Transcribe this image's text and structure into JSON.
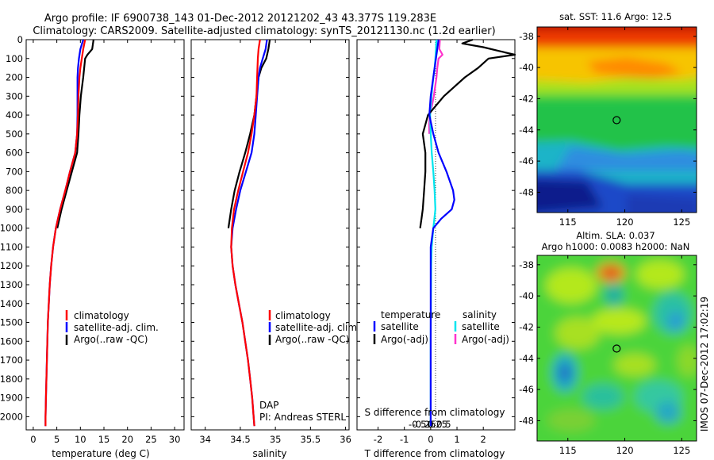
{
  "header": {
    "line1": "Argo profile: IF 6900738_143 01-Dec-2012 20121202_43 43.377S 119.283E",
    "line2": "Climatology: CARS2009. Satellite-adjusted climatology: synTS_20121130.nc (1.2d earlier)"
  },
  "credit": {
    "dap": "DAP",
    "pi": "PI: Andreas STERL"
  },
  "footer": {
    "stamp": "IMOS 07-Dec-2012 17:02:19"
  },
  "colors": {
    "climatology": "#ff0000",
    "satellite": "#0000ff",
    "argo": "#000000",
    "sal_satellite": "#00e5ee",
    "sal_argo": "#ff33cc"
  },
  "chart_data": [
    {
      "type": "line",
      "xlabel": "temperature (deg C)",
      "xticks": [
        0,
        5,
        10,
        15,
        20,
        25,
        30
      ],
      "xlim": [
        -1.5,
        32
      ],
      "ylim": [
        2070,
        0
      ],
      "yticks": [
        0,
        100,
        200,
        300,
        400,
        500,
        600,
        700,
        800,
        900,
        1000,
        1100,
        1200,
        1300,
        1400,
        1500,
        1600,
        1700,
        1800,
        1900,
        2000
      ],
      "legend": [
        "climatology",
        "satellite-adj. clim.",
        "Argo(..raw -QC)"
      ],
      "series": [
        {
          "name": "climatology",
          "color": "#ff0000",
          "depth": [
            0,
            50,
            100,
            150,
            200,
            300,
            400,
            500,
            600,
            700,
            800,
            900,
            1000,
            1100,
            1200,
            1300,
            1400,
            1500,
            1600,
            1700,
            1800,
            1900,
            2000,
            2050
          ],
          "values": [
            11.0,
            10.6,
            10.3,
            10.0,
            9.8,
            9.6,
            9.5,
            9.3,
            8.9,
            7.8,
            6.8,
            5.7,
            4.8,
            4.2,
            3.8,
            3.5,
            3.3,
            3.1,
            3.0,
            2.9,
            2.8,
            2.7,
            2.6,
            2.6
          ]
        },
        {
          "name": "satellite-adj. clim.",
          "color": "#0000ff",
          "depth": [
            0,
            50,
            100,
            150,
            200,
            300,
            400,
            500,
            600,
            700,
            800,
            900,
            1000,
            1100,
            1200,
            1300,
            1400,
            1500,
            1600,
            1700,
            1800,
            1900,
            2000,
            2050
          ],
          "values": [
            10.6,
            10.0,
            9.7,
            9.5,
            9.4,
            9.4,
            9.4,
            9.3,
            8.9,
            7.8,
            6.8,
            5.7,
            4.8,
            4.2,
            3.8,
            3.5,
            3.3,
            3.1,
            3.0,
            2.9,
            2.8,
            2.7,
            2.6,
            2.6
          ]
        },
        {
          "name": "Argo(..raw -QC)",
          "color": "#000000",
          "depth": [
            0,
            50,
            80,
            100,
            150,
            200,
            300,
            400,
            500,
            600,
            700,
            800,
            900,
            1000
          ],
          "values": [
            12.8,
            12.5,
            11.5,
            11.0,
            10.8,
            10.6,
            10.1,
            9.8,
            9.6,
            9.3,
            8.2,
            7.1,
            6.0,
            5.1
          ]
        }
      ]
    },
    {
      "type": "line",
      "xlabel": "salinity",
      "xticks": [
        34,
        34.5,
        35,
        35.5,
        36
      ],
      "xlim": [
        33.8,
        36.05
      ],
      "ylim": [
        2070,
        0
      ],
      "legend": [
        "climatology",
        "satellite-adj. clim.",
        "Argo(..raw -QC)"
      ],
      "series": [
        {
          "name": "climatology",
          "color": "#ff0000",
          "depth": [
            0,
            50,
            100,
            200,
            300,
            400,
            500,
            600,
            700,
            800,
            900,
            1000,
            1100,
            1200,
            1300,
            1400,
            1500,
            1600,
            1700,
            1800,
            1900,
            2000,
            2050
          ],
          "values": [
            34.78,
            34.76,
            34.75,
            34.74,
            34.73,
            34.7,
            34.66,
            34.61,
            34.54,
            34.47,
            34.41,
            34.38,
            34.37,
            34.39,
            34.43,
            34.48,
            34.53,
            34.57,
            34.61,
            34.64,
            34.67,
            34.69,
            34.7
          ]
        },
        {
          "name": "satellite-adj. clim.",
          "color": "#0000ff",
          "depth": [
            0,
            50,
            100,
            150,
            200,
            300,
            400,
            500,
            600,
            700,
            800,
            900,
            1000,
            1100,
            1200,
            1300,
            1400,
            1500,
            1600,
            1700,
            1800,
            1900,
            2000,
            2050
          ],
          "values": [
            34.88,
            34.86,
            34.82,
            34.78,
            34.76,
            34.74,
            34.72,
            34.7,
            34.66,
            34.58,
            34.5,
            34.44,
            34.39,
            34.37,
            34.39,
            34.43,
            34.48,
            34.53,
            34.57,
            34.61,
            34.64,
            34.67,
            34.69,
            34.7
          ]
        },
        {
          "name": "Argo(..raw -QC)",
          "color": "#000000",
          "depth": [
            0,
            50,
            100,
            150,
            200,
            300,
            400,
            500,
            600,
            700,
            800,
            900,
            1000
          ],
          "values": [
            34.92,
            34.9,
            34.87,
            34.8,
            34.76,
            34.73,
            34.7,
            34.64,
            34.57,
            34.49,
            34.42,
            34.37,
            34.33
          ]
        }
      ]
    },
    {
      "type": "line",
      "xlabel": "T difference from climatology",
      "xticks": [
        -2,
        -1,
        0,
        1,
        2
      ],
      "xlim": [
        -2.8,
        3.2
      ],
      "ylim": [
        2070,
        0
      ],
      "secondary_xlabel": "S difference from climatology",
      "secondary_xticks": [
        -0.5,
        -0.25,
        0,
        0.25,
        0.5
      ],
      "legend_titles": [
        "temperature",
        "salinity"
      ],
      "legend": [
        "satellite",
        "Argo(-adj)",
        "satellite",
        "Argo(-adj)"
      ],
      "series": [
        {
          "name": "satellite",
          "group": "temperature",
          "color": "#0000ff",
          "depth": [
            0,
            50,
            100,
            200,
            300,
            400,
            500,
            600,
            700,
            800,
            850,
            900,
            950,
            1000,
            1100,
            1200,
            1400,
            1600,
            1800,
            2000,
            2050
          ],
          "values": [
            0.3,
            0.25,
            0.2,
            0.1,
            0.0,
            -0.05,
            0.1,
            0.3,
            0.6,
            0.85,
            0.9,
            0.8,
            0.4,
            0.1,
            0.0,
            0.0,
            0.0,
            0.0,
            0.0,
            0.0,
            0.0
          ]
        },
        {
          "name": "Argo(-adj)",
          "group": "temperature",
          "color": "#000000",
          "depth": [
            0,
            20,
            40,
            60,
            80,
            100,
            150,
            200,
            250,
            300,
            350,
            400,
            450,
            500,
            600,
            700,
            800,
            900,
            950,
            1000
          ],
          "values": [
            1.6,
            1.2,
            2.0,
            2.6,
            3.2,
            2.2,
            1.8,
            1.3,
            0.9,
            0.5,
            0.2,
            -0.1,
            -0.2,
            -0.3,
            -0.2,
            -0.2,
            -0.25,
            -0.3,
            -0.35,
            -0.4
          ]
        },
        {
          "name": "satellite",
          "group": "salinity",
          "color": "#00e5ee",
          "depth": [
            0,
            50,
            100,
            150,
            200,
            300,
            400,
            500,
            600,
            700,
            800,
            900,
            1000,
            1100,
            1200,
            1400,
            1600,
            1800,
            2000,
            2050
          ],
          "values": [
            0.22,
            0.2,
            0.18,
            0.15,
            0.1,
            0.03,
            -0.02,
            0.0,
            0.04,
            0.1,
            0.15,
            0.18,
            0.1,
            0.04,
            0.02,
            0.01,
            0.0,
            0.0,
            0.0,
            0.0
          ]
        },
        {
          "name": "Argo(-adj)",
          "group": "salinity",
          "color": "#ff33cc",
          "depth": [
            0,
            50,
            80,
            100,
            150,
            200,
            300,
            350,
            400,
            450,
            500
          ],
          "values": [
            0.35,
            0.33,
            0.45,
            0.3,
            0.25,
            0.22,
            0.12,
            0.05,
            -0.03,
            -0.06,
            -0.05
          ]
        }
      ]
    },
    {
      "type": "heatmap",
      "title": "sat. SST: 11.6 Argo: 12.5",
      "xticks": [
        115,
        120,
        125
      ],
      "yticks": [
        -38,
        -40,
        -42,
        -44,
        -46,
        -48
      ],
      "xlim": [
        112.3,
        126.3
      ],
      "ylim": [
        -49.3,
        -37.4
      ],
      "marker": {
        "x": 119.283,
        "y": -43.377
      }
    },
    {
      "type": "heatmap",
      "title_line1": "Altim. SLA: 0.037",
      "title_line2": "Argo h1000: 0.0083 h2000: NaN",
      "xticks": [
        115,
        120,
        125
      ],
      "yticks": [
        -38,
        -40,
        -42,
        -44,
        -46,
        -48
      ],
      "xlim": [
        112.3,
        126.3
      ],
      "ylim": [
        -49.3,
        -37.4
      ],
      "marker": {
        "x": 119.283,
        "y": -43.377
      }
    }
  ]
}
